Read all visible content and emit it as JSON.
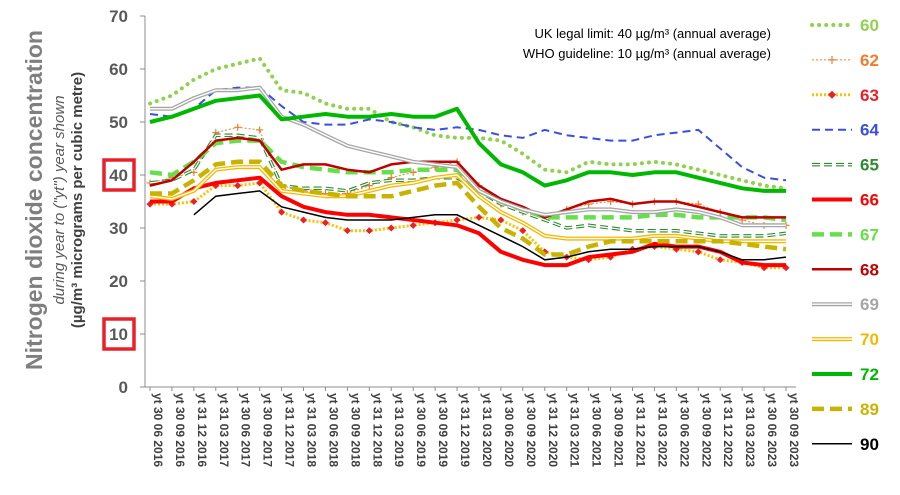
{
  "chart_data": {
    "type": "line",
    "ylabel": "Nitrogen dioxide concentration",
    "ylabel_sub": "during year to (\"yt\") year shown",
    "ylabel_unit": "(µg/m³ micrograms per cubic metre)",
    "ylim": [
      0,
      70
    ],
    "yticks": [
      "0",
      "10",
      "20",
      "30",
      "40",
      "50",
      "60",
      "70"
    ],
    "highlighted_yticks": [
      "10",
      "40"
    ],
    "highlight_color": "#e8202a",
    "annotations": [
      "UK legal limit:  40 µg/m³ (annual average)",
      "WHO guideline:  10 µg/m³ (annual average)"
    ],
    "grid": false,
    "legend_position": "right",
    "categories": [
      "yt 30 06 2016",
      "yt 30 09 2016",
      "yt 31 12 2016",
      "yt 31 03 2017",
      "yt 30 06 2017",
      "yt 30 09 2017",
      "yt 31 12 2017",
      "yt 31 03 2018",
      "yt 30 06 2018",
      "yt 30 09 2018",
      "yt 31 12 2018",
      "yt 31 03 2019",
      "yt 30 06 2019",
      "yt 30 09 2019",
      "yt 31 12 2019",
      "yt 31 03 2020",
      "yt 30 06 2020",
      "yt 30 09 2020",
      "yt 31 12 2020",
      "yt 31 03 2021",
      "yt 30 06 2021",
      "yt 30 09 2021",
      "yt 31 12 2021",
      "yt 31 03 2022",
      "yt 30 06 2022",
      "yt 30 09 2022",
      "yt 31 12 2022",
      "yt 31 03 2023",
      "yt 30 06 2023",
      "yt 30 09 2023"
    ],
    "series": [
      {
        "name": "60",
        "color": "#92d050",
        "style": "dotted-round",
        "values": [
          53.5,
          55,
          58,
          60,
          61,
          62,
          56,
          55.5,
          53.5,
          52.5,
          52.5,
          50,
          49,
          47.5,
          47,
          47,
          46.5,
          44,
          41,
          40.5,
          42.5,
          42,
          42,
          42.5,
          42,
          41,
          40,
          39,
          38,
          37.5
        ]
      },
      {
        "name": "62",
        "color": "#ed7d31",
        "style": "line-plus",
        "values": [
          38.5,
          39.5,
          40.5,
          48,
          49,
          48.5,
          38,
          37,
          36.5,
          36.5,
          38,
          39.5,
          40.5,
          41.5,
          42.5,
          38,
          34.5,
          33,
          32,
          33.5,
          34.5,
          35,
          34.5,
          35,
          35,
          34.5,
          33,
          31.5,
          30.5,
          30.5
        ]
      },
      {
        "name": "63",
        "color": "#e8202a",
        "marker_color": "#e8202a",
        "line_color": "#ffc000",
        "style": "dotted-diamond",
        "values": [
          34.5,
          34.5,
          35,
          38,
          38,
          38.5,
          33,
          31.5,
          31,
          29.5,
          29.5,
          30,
          30.5,
          31,
          31.5,
          32,
          31.5,
          29.5,
          25.5,
          24.5,
          24,
          24.5,
          26,
          26.5,
          26,
          25.5,
          24,
          23.5,
          22.5,
          22.5
        ]
      },
      {
        "name": "64",
        "color": "#3a4fe0",
        "style": "dashed",
        "values": [
          51.5,
          51,
          52.5,
          56,
          56.5,
          56.5,
          53,
          50,
          49.5,
          49.5,
          50.5,
          50,
          49,
          48.5,
          49,
          48.5,
          47.5,
          47,
          48.5,
          47.5,
          47,
          46.5,
          46.5,
          47.5,
          48,
          48.5,
          45,
          41.5,
          39.5,
          39
        ]
      },
      {
        "name": "65",
        "color": "#2e8b2e",
        "style": "dashed-hollow",
        "values": [
          38.5,
          39,
          41,
          47.5,
          47.5,
          47,
          38,
          37.5,
          37.5,
          37,
          38.5,
          39,
          39,
          39.5,
          39.5,
          37,
          34.5,
          33,
          31.5,
          30,
          30.5,
          30,
          29.5,
          29.5,
          29.5,
          29,
          28.5,
          28.5,
          28.5,
          29
        ]
      },
      {
        "name": "66",
        "color": "#ff0000",
        "style": "thick",
        "values": [
          35,
          35,
          37.5,
          38.5,
          39,
          39.5,
          36,
          34,
          33,
          32.5,
          32.5,
          32,
          31.5,
          31,
          30.5,
          29,
          25.5,
          24,
          23,
          23,
          24.5,
          25,
          25.5,
          27,
          26.5,
          26.5,
          25.5,
          23.5,
          23,
          23
        ]
      },
      {
        "name": "67",
        "color": "#66e04a",
        "style": "thick-dashed",
        "values": [
          40.5,
          40,
          42.5,
          46,
          46.5,
          46.5,
          42.5,
          41.5,
          41,
          40.5,
          40.5,
          40.5,
          41,
          41,
          41,
          37,
          35,
          33.5,
          32,
          32,
          32,
          32,
          32,
          32.5,
          32.5,
          32,
          32,
          32,
          32,
          31.5
        ]
      },
      {
        "name": "68",
        "color": "#c00000",
        "style": "solid",
        "values": [
          38,
          39,
          42.5,
          46.5,
          47,
          46.5,
          41,
          42,
          42,
          41,
          40.5,
          42,
          42.5,
          42.5,
          42.5,
          38,
          35.5,
          34,
          32,
          33.5,
          35,
          35.5,
          34.5,
          35,
          35,
          34,
          33,
          32,
          32,
          32
        ]
      },
      {
        "name": "69",
        "color": "#a6a6a6",
        "style": "double",
        "values": [
          52.5,
          52.5,
          54.5,
          56,
          56,
          56.5,
          51,
          49.5,
          47.5,
          45.5,
          44.5,
          43.5,
          42.5,
          42,
          41.5,
          37,
          35,
          33.5,
          32.5,
          33,
          33.5,
          33.5,
          33,
          33,
          33.5,
          33,
          32,
          30.5,
          30.5,
          30.5
        ]
      },
      {
        "name": "70",
        "color": "#f5b800",
        "style": "double",
        "values": [
          36,
          35.5,
          37,
          41,
          41.5,
          41.5,
          37,
          36.5,
          36,
          36,
          37,
          38,
          38.5,
          39.5,
          40,
          36,
          33,
          31,
          28.5,
          28,
          28,
          28,
          28,
          28.5,
          28.5,
          28,
          27.5,
          27.5,
          27.5,
          27.5
        ]
      },
      {
        "name": "72",
        "color": "#00b800",
        "style": "thick",
        "values": [
          50,
          51,
          52.5,
          54,
          54.5,
          55,
          50.5,
          51,
          51.5,
          51,
          51,
          51.5,
          51,
          51,
          52.5,
          46,
          42,
          40.5,
          38,
          39,
          40.5,
          40.5,
          40,
          40.5,
          40.5,
          39.5,
          38.5,
          37.5,
          37,
          37
        ]
      },
      {
        "name": "89",
        "color": "#c8b400",
        "style": "thick-dashed",
        "values": [
          36.5,
          36.5,
          39,
          42,
          42.5,
          42.5,
          38,
          37,
          36.5,
          36,
          36,
          36,
          37,
          38,
          38.5,
          34,
          30,
          28,
          25,
          25,
          26.5,
          27.5,
          27.5,
          27.5,
          27.5,
          27.5,
          27.5,
          27,
          26.5,
          26
        ]
      },
      {
        "name": "90",
        "color": "#000000",
        "style": "thin",
        "values": [
          null,
          null,
          32.5,
          36,
          36.5,
          37,
          34,
          33,
          32,
          31.5,
          31.5,
          31.5,
          32,
          32.5,
          32.5,
          30.5,
          28.5,
          26.5,
          24,
          24.5,
          25.5,
          26,
          26,
          26.5,
          26.5,
          26.5,
          25.5,
          24,
          24,
          24.5
        ]
      }
    ]
  }
}
